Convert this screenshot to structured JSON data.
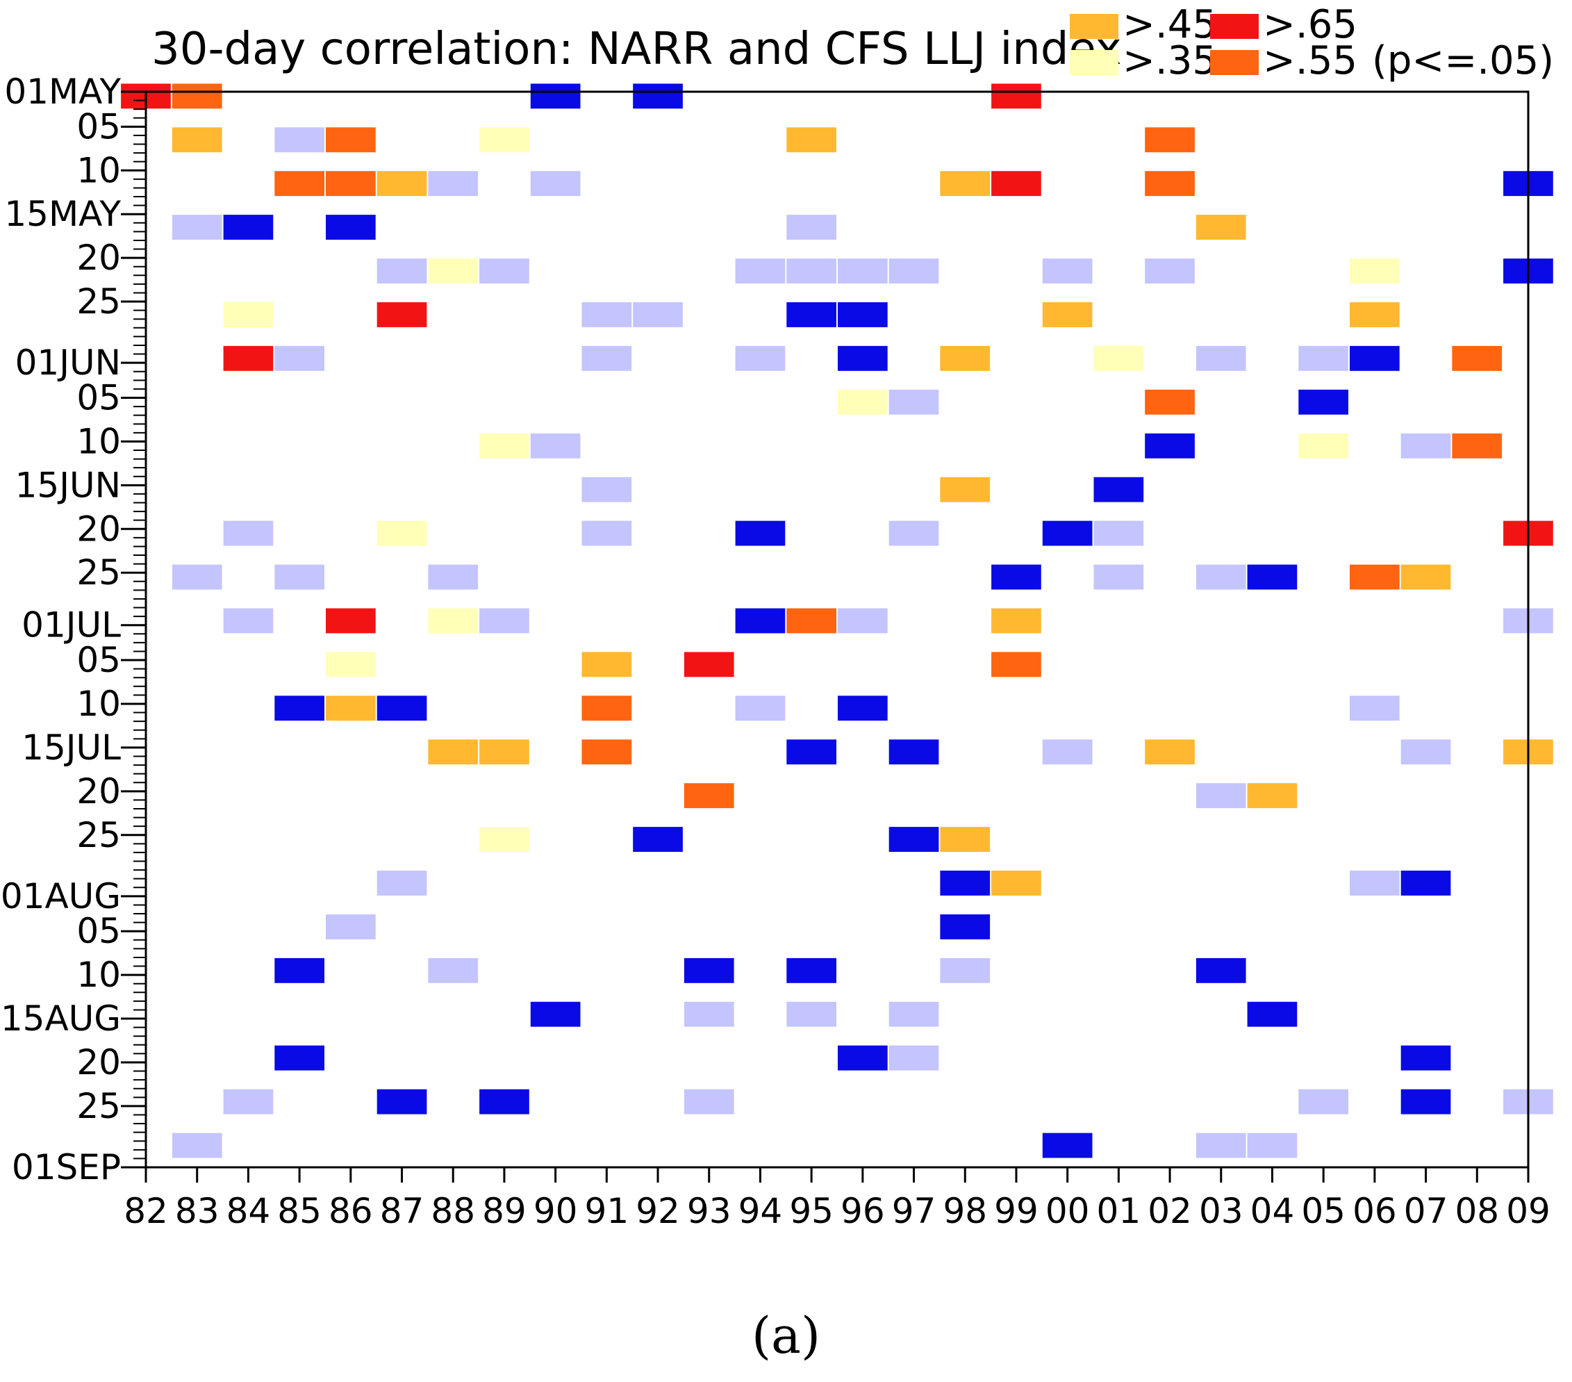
{
  "panel_label": "(a)",
  "colors": {
    "c35": "#ffffb8",
    "c45": "#ffb830",
    "c55": "#ff6410",
    "c65": "#f21414",
    "neg_light": "#c4c4ff",
    "neg_strong": "#0a0ae6"
  },
  "chart_data": {
    "type": "heatmap",
    "title": "30-day correlation: NARR and CFS LLJ index",
    "legend": {
      "placement": "top-right",
      "note": "(p<=.05)",
      "entries": [
        {
          "key": "c45",
          "label": ">.45"
        },
        {
          "key": "c65",
          "label": ">.65"
        },
        {
          "key": "c35",
          "label": ">.35"
        },
        {
          "key": "c55",
          "label": ">.55"
        }
      ]
    },
    "x_tick_labels": [
      "82",
      "83",
      "84",
      "85",
      "86",
      "87",
      "88",
      "89",
      "90",
      "91",
      "92",
      "93",
      "94",
      "95",
      "96",
      "97",
      "98",
      "99",
      "00",
      "01",
      "02",
      "03",
      "04",
      "05",
      "06",
      "07",
      "08",
      "09"
    ],
    "y_tick_labels": [
      {
        "label": "01MAY",
        "day": 0
      },
      {
        "label": "05",
        "day": 4
      },
      {
        "label": "10",
        "day": 9
      },
      {
        "label": "15MAY",
        "day": 14
      },
      {
        "label": "20",
        "day": 19
      },
      {
        "label": "25",
        "day": 24
      },
      {
        "label": "01JUN",
        "day": 31
      },
      {
        "label": "05",
        "day": 35
      },
      {
        "label": "10",
        "day": 40
      },
      {
        "label": "15JUN",
        "day": 45
      },
      {
        "label": "20",
        "day": 50
      },
      {
        "label": "25",
        "day": 55
      },
      {
        "label": "01JUL",
        "day": 61
      },
      {
        "label": "05",
        "day": 65
      },
      {
        "label": "10",
        "day": 70
      },
      {
        "label": "15JUL",
        "day": 75
      },
      {
        "label": "20",
        "day": 80
      },
      {
        "label": "25",
        "day": 85
      },
      {
        "label": "01AUG",
        "day": 92
      },
      {
        "label": "05",
        "day": 96
      },
      {
        "label": "10",
        "day": 101
      },
      {
        "label": "15AUG",
        "day": 106
      },
      {
        "label": "20",
        "day": 111
      },
      {
        "label": "25",
        "day": 116
      },
      {
        "label": "01SEP",
        "day": 123
      }
    ],
    "y_range_days": [
      0,
      123
    ],
    "x_range_years": [
      1982,
      2009
    ],
    "cell_span_days": 3,
    "cells": [
      {
        "year": 1982,
        "day": 0,
        "c": "c65"
      },
      {
        "year": 1983,
        "day": 0,
        "c": "c55"
      },
      {
        "year": 1990,
        "day": 0,
        "c": "neg_strong"
      },
      {
        "year": 1992,
        "day": 0,
        "c": "neg_strong"
      },
      {
        "year": 1999,
        "day": 0,
        "c": "c65"
      },
      {
        "year": 1983,
        "day": 5,
        "c": "c45"
      },
      {
        "year": 1985,
        "day": 5,
        "c": "neg_light"
      },
      {
        "year": 1986,
        "day": 5,
        "c": "c55"
      },
      {
        "year": 1989,
        "day": 5,
        "c": "c35"
      },
      {
        "year": 1995,
        "day": 5,
        "c": "c45"
      },
      {
        "year": 2002,
        "day": 5,
        "c": "c55"
      },
      {
        "year": 1985,
        "day": 10,
        "c": "c55"
      },
      {
        "year": 1986,
        "day": 10,
        "c": "c55"
      },
      {
        "year": 1987,
        "day": 10,
        "c": "c45"
      },
      {
        "year": 1988,
        "day": 10,
        "c": "neg_light"
      },
      {
        "year": 1990,
        "day": 10,
        "c": "neg_light"
      },
      {
        "year": 1998,
        "day": 10,
        "c": "c45"
      },
      {
        "year": 1999,
        "day": 10,
        "c": "c65"
      },
      {
        "year": 2002,
        "day": 10,
        "c": "c55"
      },
      {
        "year": 2009,
        "day": 10,
        "c": "neg_strong"
      },
      {
        "year": 1983,
        "day": 15,
        "c": "neg_light"
      },
      {
        "year": 1984,
        "day": 15,
        "c": "neg_strong"
      },
      {
        "year": 1986,
        "day": 15,
        "c": "neg_strong"
      },
      {
        "year": 1995,
        "day": 15,
        "c": "neg_light"
      },
      {
        "year": 2003,
        "day": 15,
        "c": "c45"
      },
      {
        "year": 1987,
        "day": 20,
        "c": "neg_light"
      },
      {
        "year": 1988,
        "day": 20,
        "c": "c35"
      },
      {
        "year": 1989,
        "day": 20,
        "c": "neg_light"
      },
      {
        "year": 1994,
        "day": 20,
        "c": "neg_light"
      },
      {
        "year": 1995,
        "day": 20,
        "c": "neg_light"
      },
      {
        "year": 1996,
        "day": 20,
        "c": "neg_light"
      },
      {
        "year": 1997,
        "day": 20,
        "c": "neg_light"
      },
      {
        "year": 2000,
        "day": 20,
        "c": "neg_light"
      },
      {
        "year": 2002,
        "day": 20,
        "c": "neg_light"
      },
      {
        "year": 2006,
        "day": 20,
        "c": "c35"
      },
      {
        "year": 2009,
        "day": 20,
        "c": "neg_strong"
      },
      {
        "year": 1984,
        "day": 25,
        "c": "c35"
      },
      {
        "year": 1987,
        "day": 25,
        "c": "c65"
      },
      {
        "year": 1991,
        "day": 25,
        "c": "neg_light"
      },
      {
        "year": 1992,
        "day": 25,
        "c": "neg_light"
      },
      {
        "year": 1995,
        "day": 25,
        "c": "neg_strong"
      },
      {
        "year": 1996,
        "day": 25,
        "c": "neg_strong"
      },
      {
        "year": 2000,
        "day": 25,
        "c": "c45"
      },
      {
        "year": 2006,
        "day": 25,
        "c": "c45"
      },
      {
        "year": 1984,
        "day": 30,
        "c": "c65"
      },
      {
        "year": 1985,
        "day": 30,
        "c": "neg_light"
      },
      {
        "year": 1991,
        "day": 30,
        "c": "neg_light"
      },
      {
        "year": 1994,
        "day": 30,
        "c": "neg_light"
      },
      {
        "year": 1996,
        "day": 30,
        "c": "neg_strong"
      },
      {
        "year": 1998,
        "day": 30,
        "c": "c45"
      },
      {
        "year": 2001,
        "day": 30,
        "c": "c35"
      },
      {
        "year": 2003,
        "day": 30,
        "c": "neg_light"
      },
      {
        "year": 2005,
        "day": 30,
        "c": "neg_light"
      },
      {
        "year": 2006,
        "day": 30,
        "c": "neg_strong"
      },
      {
        "year": 2008,
        "day": 30,
        "c": "c55"
      },
      {
        "year": 1996,
        "day": 35,
        "c": "c35"
      },
      {
        "year": 1997,
        "day": 35,
        "c": "neg_light"
      },
      {
        "year": 2002,
        "day": 35,
        "c": "c55"
      },
      {
        "year": 2005,
        "day": 35,
        "c": "neg_strong"
      },
      {
        "year": 1989,
        "day": 40,
        "c": "c35"
      },
      {
        "year": 1990,
        "day": 40,
        "c": "neg_light"
      },
      {
        "year": 2002,
        "day": 40,
        "c": "neg_strong"
      },
      {
        "year": 2005,
        "day": 40,
        "c": "c35"
      },
      {
        "year": 2007,
        "day": 40,
        "c": "neg_light"
      },
      {
        "year": 2008,
        "day": 40,
        "c": "c55"
      },
      {
        "year": 1991,
        "day": 45,
        "c": "neg_light"
      },
      {
        "year": 1998,
        "day": 45,
        "c": "c45"
      },
      {
        "year": 2001,
        "day": 45,
        "c": "neg_strong"
      },
      {
        "year": 1984,
        "day": 50,
        "c": "neg_light"
      },
      {
        "year": 1987,
        "day": 50,
        "c": "c35"
      },
      {
        "year": 1991,
        "day": 50,
        "c": "neg_light"
      },
      {
        "year": 1994,
        "day": 50,
        "c": "neg_strong"
      },
      {
        "year": 1997,
        "day": 50,
        "c": "neg_light"
      },
      {
        "year": 2000,
        "day": 50,
        "c": "neg_strong"
      },
      {
        "year": 2001,
        "day": 50,
        "c": "neg_light"
      },
      {
        "year": 2009,
        "day": 50,
        "c": "c65"
      },
      {
        "year": 1983,
        "day": 55,
        "c": "neg_light"
      },
      {
        "year": 1985,
        "day": 55,
        "c": "neg_light"
      },
      {
        "year": 1988,
        "day": 55,
        "c": "neg_light"
      },
      {
        "year": 1999,
        "day": 55,
        "c": "neg_strong"
      },
      {
        "year": 2001,
        "day": 55,
        "c": "neg_light"
      },
      {
        "year": 2003,
        "day": 55,
        "c": "neg_light"
      },
      {
        "year": 2004,
        "day": 55,
        "c": "neg_strong"
      },
      {
        "year": 2006,
        "day": 55,
        "c": "c55"
      },
      {
        "year": 2007,
        "day": 55,
        "c": "c45"
      },
      {
        "year": 1984,
        "day": 60,
        "c": "neg_light"
      },
      {
        "year": 1986,
        "day": 60,
        "c": "c65"
      },
      {
        "year": 1988,
        "day": 60,
        "c": "c35"
      },
      {
        "year": 1989,
        "day": 60,
        "c": "neg_light"
      },
      {
        "year": 1994,
        "day": 60,
        "c": "neg_strong"
      },
      {
        "year": 1995,
        "day": 60,
        "c": "c55"
      },
      {
        "year": 1996,
        "day": 60,
        "c": "neg_light"
      },
      {
        "year": 1999,
        "day": 60,
        "c": "c45"
      },
      {
        "year": 2009,
        "day": 60,
        "c": "neg_light"
      },
      {
        "year": 1986,
        "day": 65,
        "c": "c35"
      },
      {
        "year": 1991,
        "day": 65,
        "c": "c45"
      },
      {
        "year": 1993,
        "day": 65,
        "c": "c65"
      },
      {
        "year": 1999,
        "day": 65,
        "c": "c55"
      },
      {
        "year": 1985,
        "day": 70,
        "c": "neg_strong"
      },
      {
        "year": 1986,
        "day": 70,
        "c": "c45"
      },
      {
        "year": 1987,
        "day": 70,
        "c": "neg_strong"
      },
      {
        "year": 1991,
        "day": 70,
        "c": "c55"
      },
      {
        "year": 1994,
        "day": 70,
        "c": "neg_light"
      },
      {
        "year": 1996,
        "day": 70,
        "c": "neg_strong"
      },
      {
        "year": 2006,
        "day": 70,
        "c": "neg_light"
      },
      {
        "year": 1988,
        "day": 75,
        "c": "c45"
      },
      {
        "year": 1989,
        "day": 75,
        "c": "c45"
      },
      {
        "year": 1991,
        "day": 75,
        "c": "c55"
      },
      {
        "year": 1995,
        "day": 75,
        "c": "neg_strong"
      },
      {
        "year": 1997,
        "day": 75,
        "c": "neg_strong"
      },
      {
        "year": 2000,
        "day": 75,
        "c": "neg_light"
      },
      {
        "year": 2002,
        "day": 75,
        "c": "c45"
      },
      {
        "year": 2007,
        "day": 75,
        "c": "neg_light"
      },
      {
        "year": 2009,
        "day": 75,
        "c": "c45"
      },
      {
        "year": 1993,
        "day": 80,
        "c": "c55"
      },
      {
        "year": 2003,
        "day": 80,
        "c": "neg_light"
      },
      {
        "year": 2004,
        "day": 80,
        "c": "c45"
      },
      {
        "year": 1989,
        "day": 85,
        "c": "c35"
      },
      {
        "year": 1992,
        "day": 85,
        "c": "neg_strong"
      },
      {
        "year": 1997,
        "day": 85,
        "c": "neg_strong"
      },
      {
        "year": 1998,
        "day": 85,
        "c": "c45"
      },
      {
        "year": 1987,
        "day": 90,
        "c": "neg_light"
      },
      {
        "year": 1998,
        "day": 90,
        "c": "neg_strong"
      },
      {
        "year": 1999,
        "day": 90,
        "c": "c45"
      },
      {
        "year": 2006,
        "day": 90,
        "c": "neg_light"
      },
      {
        "year": 2007,
        "day": 90,
        "c": "neg_strong"
      },
      {
        "year": 1986,
        "day": 95,
        "c": "neg_light"
      },
      {
        "year": 1998,
        "day": 95,
        "c": "neg_strong"
      },
      {
        "year": 1985,
        "day": 100,
        "c": "neg_strong"
      },
      {
        "year": 1988,
        "day": 100,
        "c": "neg_light"
      },
      {
        "year": 1993,
        "day": 100,
        "c": "neg_strong"
      },
      {
        "year": 1995,
        "day": 100,
        "c": "neg_strong"
      },
      {
        "year": 1998,
        "day": 100,
        "c": "neg_light"
      },
      {
        "year": 2003,
        "day": 100,
        "c": "neg_strong"
      },
      {
        "year": 1990,
        "day": 105,
        "c": "neg_strong"
      },
      {
        "year": 1993,
        "day": 105,
        "c": "neg_light"
      },
      {
        "year": 1995,
        "day": 105,
        "c": "neg_light"
      },
      {
        "year": 1997,
        "day": 105,
        "c": "neg_light"
      },
      {
        "year": 2004,
        "day": 105,
        "c": "neg_strong"
      },
      {
        "year": 1985,
        "day": 110,
        "c": "neg_strong"
      },
      {
        "year": 1996,
        "day": 110,
        "c": "neg_strong"
      },
      {
        "year": 1997,
        "day": 110,
        "c": "neg_light"
      },
      {
        "year": 2007,
        "day": 110,
        "c": "neg_strong"
      },
      {
        "year": 1984,
        "day": 115,
        "c": "neg_light"
      },
      {
        "year": 1987,
        "day": 115,
        "c": "neg_strong"
      },
      {
        "year": 1989,
        "day": 115,
        "c": "neg_strong"
      },
      {
        "year": 1993,
        "day": 115,
        "c": "neg_light"
      },
      {
        "year": 2005,
        "day": 115,
        "c": "neg_light"
      },
      {
        "year": 2007,
        "day": 115,
        "c": "neg_strong"
      },
      {
        "year": 2009,
        "day": 115,
        "c": "neg_light"
      },
      {
        "year": 1983,
        "day": 120,
        "c": "neg_light"
      },
      {
        "year": 2000,
        "day": 120,
        "c": "neg_strong"
      },
      {
        "year": 2003,
        "day": 120,
        "c": "neg_light"
      },
      {
        "year": 2004,
        "day": 120,
        "c": "neg_light"
      }
    ],
    "grid": false
  }
}
